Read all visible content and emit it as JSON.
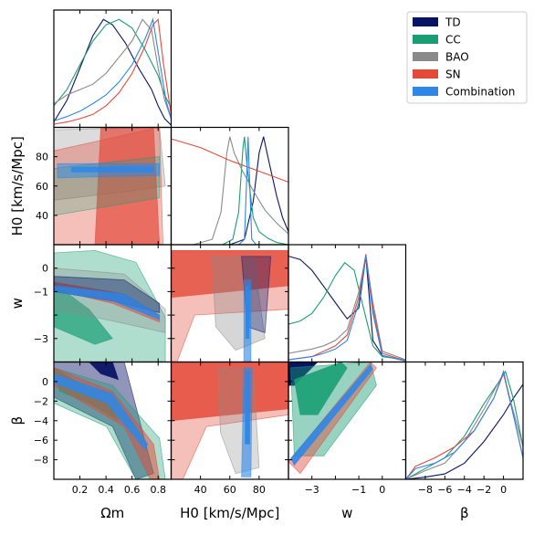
{
  "chart_data": {
    "type": "corner",
    "parameters": [
      {
        "key": "om",
        "label": "Ωm",
        "range": [
          0.0,
          0.9
        ],
        "ticks": [
          0.2,
          0.4,
          0.6,
          0.8
        ],
        "tick_labels": [
          "0.2",
          "0.4",
          "0.6",
          "0.8"
        ]
      },
      {
        "key": "h0",
        "label": "H0 [km/s/Mpc]",
        "range": [
          20,
          100
        ],
        "ticks": [
          40,
          60,
          80
        ],
        "tick_labels": [
          "40",
          "60",
          "80"
        ]
      },
      {
        "key": "w",
        "label": "w",
        "range": [
          -4,
          1
        ],
        "ticks": [
          -3,
          -2,
          -1,
          0
        ],
        "tick_labels": [
          "−3",
          "",
          "−1",
          "0"
        ]
      },
      {
        "key": "beta",
        "label": "β",
        "range": [
          -10,
          2
        ],
        "ticks": [
          -8,
          -6,
          -4,
          -2,
          0
        ],
        "tick_labels": [
          "−8",
          "−6",
          "−4",
          "−2",
          "0"
        ]
      }
    ],
    "legend": {
      "position": "top-right"
    },
    "series": [
      {
        "name": "TD",
        "color": "#0a1466",
        "marginals": {
          "om": [
            [
              0.0,
              0.05
            ],
            [
              0.1,
              0.25
            ],
            [
              0.2,
              0.55
            ],
            [
              0.3,
              0.85
            ],
            [
              0.38,
              1.0
            ],
            [
              0.45,
              0.95
            ],
            [
              0.55,
              0.78
            ],
            [
              0.65,
              0.55
            ],
            [
              0.75,
              0.35
            ],
            [
              0.8,
              0.2
            ],
            [
              0.85,
              0.08
            ],
            [
              0.9,
              0.02
            ]
          ],
          "h0": [
            [
              60,
              0.0
            ],
            [
              70,
              0.05
            ],
            [
              76,
              0.4
            ],
            [
              80,
              0.85
            ],
            [
              83,
              1.0
            ],
            [
              87,
              0.75
            ],
            [
              92,
              0.45
            ],
            [
              96,
              0.25
            ],
            [
              100,
              0.12
            ]
          ],
          "w": [
            [
              -4,
              0.98
            ],
            [
              -3.5,
              0.95
            ],
            [
              -3,
              0.85
            ],
            [
              -2.5,
              0.7
            ],
            [
              -2,
              0.55
            ],
            [
              -1.5,
              0.4
            ],
            [
              -1,
              0.5
            ],
            [
              -0.7,
              0.98
            ],
            [
              -0.4,
              0.2
            ],
            [
              0,
              0.06
            ],
            [
              1,
              0.01
            ]
          ],
          "beta": [
            [
              -10,
              0.0
            ],
            [
              -8,
              0.02
            ],
            [
              -6,
              0.05
            ],
            [
              -4,
              0.15
            ],
            [
              -2,
              0.35
            ],
            [
              0,
              0.6
            ],
            [
              1,
              0.75
            ],
            [
              2,
              0.88
            ]
          ]
        }
      },
      {
        "name": "CC",
        "color": "#199e74",
        "marginals": {
          "om": [
            [
              0.0,
              0.2
            ],
            [
              0.1,
              0.35
            ],
            [
              0.2,
              0.58
            ],
            [
              0.3,
              0.8
            ],
            [
              0.4,
              0.95
            ],
            [
              0.5,
              1.0
            ],
            [
              0.6,
              0.92
            ],
            [
              0.7,
              0.72
            ],
            [
              0.75,
              0.6
            ],
            [
              0.8,
              0.48
            ],
            [
              0.85,
              0.3
            ],
            [
              0.9,
              0.18
            ]
          ],
          "h0": [
            [
              55,
              0.0
            ],
            [
              62,
              0.05
            ],
            [
              66,
              0.3
            ],
            [
              69,
              0.9
            ],
            [
              70,
              1.0
            ],
            [
              72,
              0.7
            ],
            [
              76,
              0.25
            ],
            [
              80,
              0.12
            ],
            [
              86,
              0.06
            ],
            [
              92,
              0.02
            ],
            [
              100,
              0.0
            ]
          ],
          "w": [
            [
              -4,
              0.35
            ],
            [
              -3.5,
              0.38
            ],
            [
              -3,
              0.45
            ],
            [
              -2.5,
              0.6
            ],
            [
              -2,
              0.8
            ],
            [
              -1.6,
              0.92
            ],
            [
              -1.2,
              0.85
            ],
            [
              -0.8,
              0.5
            ],
            [
              -0.4,
              0.15
            ],
            [
              0,
              0.05
            ],
            [
              1,
              0.02
            ]
          ],
          "beta": [
            [
              -10,
              0.0
            ],
            [
              -8,
              0.1
            ],
            [
              -6,
              0.2
            ],
            [
              -4,
              0.4
            ],
            [
              -2,
              0.7
            ],
            [
              -0.5,
              0.9
            ],
            [
              0.2,
              1.0
            ],
            [
              1,
              0.75
            ],
            [
              2,
              0.3
            ]
          ]
        }
      },
      {
        "name": "BAO",
        "color": "#8a8a8a",
        "marginals": {
          "om": [
            [
              0.0,
              0.22
            ],
            [
              0.1,
              0.3
            ],
            [
              0.2,
              0.35
            ],
            [
              0.3,
              0.4
            ],
            [
              0.4,
              0.5
            ],
            [
              0.5,
              0.65
            ],
            [
              0.6,
              0.8
            ],
            [
              0.68,
              1.0
            ],
            [
              0.75,
              0.9
            ],
            [
              0.8,
              0.55
            ],
            [
              0.85,
              0.25
            ],
            [
              0.9,
              0.08
            ]
          ],
          "h0": [
            [
              35,
              0.0
            ],
            [
              48,
              0.05
            ],
            [
              54,
              0.3
            ],
            [
              58,
              0.85
            ],
            [
              60,
              1.0
            ],
            [
              63,
              0.85
            ],
            [
              68,
              0.7
            ],
            [
              76,
              0.5
            ],
            [
              84,
              0.32
            ],
            [
              92,
              0.2
            ],
            [
              100,
              0.1
            ]
          ],
          "w": [
            [
              -4,
              0.08
            ],
            [
              -3.5,
              0.1
            ],
            [
              -3,
              0.12
            ],
            [
              -2.5,
              0.15
            ],
            [
              -2,
              0.2
            ],
            [
              -1.5,
              0.3
            ],
            [
              -1,
              0.65
            ],
            [
              -0.7,
              0.98
            ],
            [
              -0.4,
              0.55
            ],
            [
              0,
              0.1
            ],
            [
              1,
              0.02
            ]
          ],
          "beta": [
            [
              -10,
              0.0
            ],
            [
              -8,
              0.08
            ],
            [
              -6,
              0.15
            ],
            [
              -4,
              0.35
            ],
            [
              -2,
              0.65
            ],
            [
              -0.5,
              0.9
            ],
            [
              0,
              0.98
            ],
            [
              0.8,
              0.7
            ],
            [
              2,
              0.3
            ]
          ]
        }
      },
      {
        "name": "SN",
        "color": "#e44a3a",
        "marginals": {
          "om": [
            [
              0.0,
              0.03
            ],
            [
              0.1,
              0.05
            ],
            [
              0.2,
              0.08
            ],
            [
              0.3,
              0.12
            ],
            [
              0.4,
              0.2
            ],
            [
              0.5,
              0.32
            ],
            [
              0.6,
              0.5
            ],
            [
              0.7,
              0.75
            ],
            [
              0.76,
              0.95
            ],
            [
              0.8,
              1.0
            ],
            [
              0.84,
              0.6
            ],
            [
              0.9,
              0.12
            ]
          ],
          "h0": [
            [
              20,
              0.98
            ],
            [
              40,
              0.9
            ],
            [
              60,
              0.78
            ],
            [
              80,
              0.68
            ],
            [
              100,
              0.58
            ]
          ],
          "w": [
            [
              -4,
              0.02
            ],
            [
              -3,
              0.05
            ],
            [
              -2.5,
              0.1
            ],
            [
              -2,
              0.15
            ],
            [
              -1.5,
              0.25
            ],
            [
              -1,
              0.6
            ],
            [
              -0.7,
              1.0
            ],
            [
              -0.4,
              0.5
            ],
            [
              0,
              0.08
            ],
            [
              1,
              0.01
            ]
          ],
          "beta": [
            [
              -10,
              0.0
            ],
            [
              -9,
              0.12
            ],
            [
              -7,
              0.2
            ],
            [
              -5,
              0.3
            ],
            [
              -3,
              0.45
            ],
            [
              -1,
              0.75
            ],
            [
              0,
              0.98
            ],
            [
              1,
              0.6
            ],
            [
              2,
              0.2
            ]
          ]
        }
      },
      {
        "name": "Combination",
        "color": "#2c87e8",
        "marginals": {
          "om": [
            [
              0.0,
              0.06
            ],
            [
              0.1,
              0.1
            ],
            [
              0.2,
              0.15
            ],
            [
              0.3,
              0.22
            ],
            [
              0.4,
              0.3
            ],
            [
              0.5,
              0.42
            ],
            [
              0.6,
              0.58
            ],
            [
              0.7,
              0.82
            ],
            [
              0.76,
              1.0
            ],
            [
              0.8,
              0.7
            ],
            [
              0.86,
              0.25
            ],
            [
              0.9,
              0.08
            ]
          ],
          "h0": [
            [
              66,
              0.0
            ],
            [
              70,
              0.05
            ],
            [
              71.5,
              0.6
            ],
            [
              72.5,
              1.0
            ],
            [
              73.5,
              0.6
            ],
            [
              75,
              0.05
            ],
            [
              78,
              0.0
            ]
          ],
          "w": [
            [
              -4,
              0.02
            ],
            [
              -3,
              0.05
            ],
            [
              -2.5,
              0.08
            ],
            [
              -2,
              0.12
            ],
            [
              -1.5,
              0.2
            ],
            [
              -1,
              0.55
            ],
            [
              -0.7,
              0.98
            ],
            [
              -0.4,
              0.45
            ],
            [
              0,
              0.06
            ],
            [
              1,
              0.01
            ]
          ],
          "beta": [
            [
              -10,
              0.0
            ],
            [
              -9,
              0.1
            ],
            [
              -7,
              0.15
            ],
            [
              -5,
              0.25
            ],
            [
              -3,
              0.45
            ],
            [
              -1,
              0.75
            ],
            [
              0,
              1.0
            ],
            [
              1,
              0.6
            ],
            [
              2,
              0.2
            ]
          ]
        }
      }
    ]
  }
}
